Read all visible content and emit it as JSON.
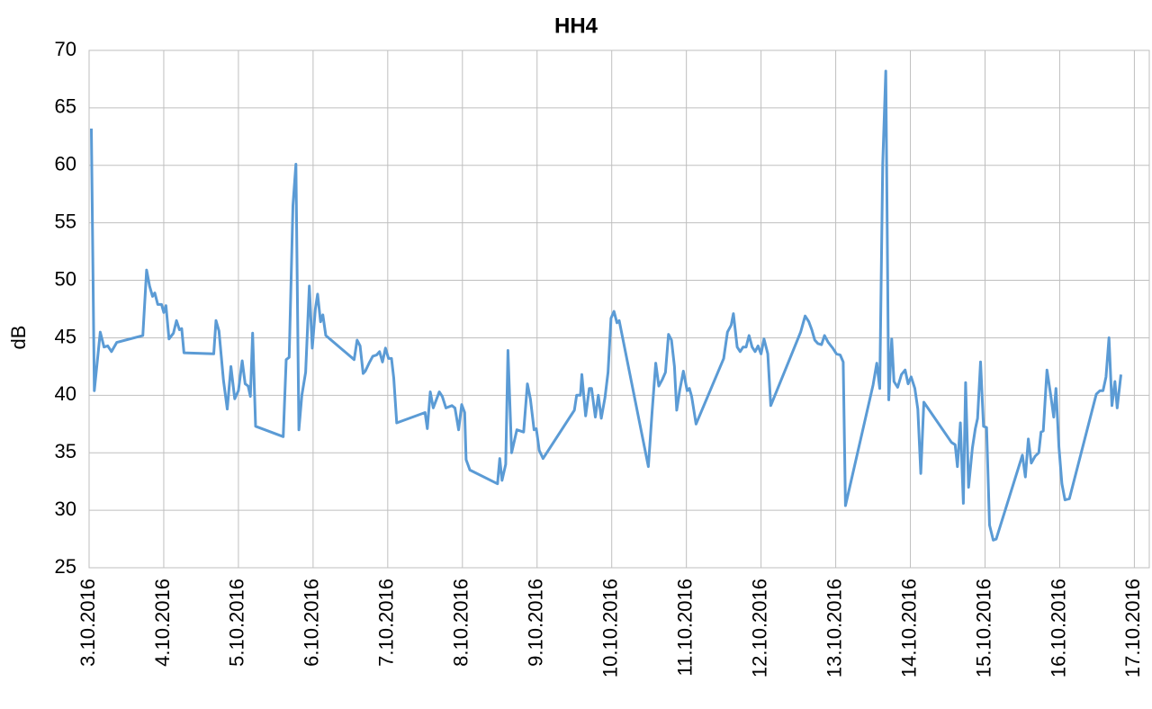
{
  "chart_data": {
    "type": "line",
    "title": "HH4",
    "y_label": "dB",
    "x": [
      0.03,
      0.07,
      0.15,
      0.2,
      0.25,
      0.3,
      0.37,
      0.72,
      0.77,
      0.81,
      0.85,
      0.88,
      0.92,
      0.97,
      1.0,
      1.03,
      1.07,
      1.13,
      1.17,
      1.21,
      1.24,
      1.27,
      1.67,
      1.7,
      1.74,
      1.8,
      1.85,
      1.9,
      1.95,
      2.0,
      2.05,
      2.09,
      2.13,
      2.16,
      2.19,
      2.23,
      2.6,
      2.64,
      2.68,
      2.73,
      2.77,
      2.81,
      2.85,
      2.9,
      2.95,
      2.99,
      3.03,
      3.06,
      3.1,
      3.13,
      3.17,
      3.55,
      3.59,
      3.63,
      3.67,
      3.7,
      3.75,
      3.8,
      3.85,
      3.89,
      3.93,
      3.97,
      4.01,
      4.05,
      4.08,
      4.12,
      4.5,
      4.53,
      4.57,
      4.61,
      4.69,
      4.73,
      4.78,
      4.86,
      4.9,
      4.95,
      4.99,
      5.03,
      5.05,
      5.1,
      5.47,
      5.5,
      5.53,
      5.58,
      5.61,
      5.66,
      5.73,
      5.82,
      5.87,
      5.91,
      5.96,
      5.99,
      6.03,
      6.08,
      6.5,
      6.53,
      6.58,
      6.6,
      6.65,
      6.7,
      6.73,
      6.78,
      6.82,
      6.86,
      6.91,
      6.95,
      6.99,
      7.03,
      7.07,
      7.1,
      7.49,
      7.54,
      7.59,
      7.63,
      7.68,
      7.72,
      7.76,
      7.8,
      7.84,
      7.87,
      7.91,
      7.96,
      8.01,
      8.04,
      8.07,
      8.13,
      8.5,
      8.55,
      8.6,
      8.63,
      8.68,
      8.72,
      8.76,
      8.8,
      8.84,
      8.88,
      8.92,
      8.96,
      9.0,
      9.04,
      9.09,
      9.13,
      9.53,
      9.59,
      9.64,
      9.68,
      9.72,
      9.76,
      9.81,
      9.85,
      9.9,
      9.96,
      10.01,
      10.06,
      10.1,
      10.13,
      10.5,
      10.55,
      10.59,
      10.63,
      10.67,
      10.71,
      10.75,
      10.78,
      10.83,
      10.88,
      10.93,
      10.97,
      11.01,
      11.06,
      11.1,
      11.14,
      11.18,
      11.55,
      11.6,
      11.63,
      11.67,
      11.71,
      11.74,
      11.78,
      11.83,
      11.87,
      11.9,
      11.94,
      11.98,
      12.02,
      12.06,
      12.11,
      12.15,
      12.5,
      12.54,
      12.58,
      12.62,
      12.67,
      12.72,
      12.75,
      12.78,
      12.83,
      12.88,
      12.92,
      12.95,
      12.99,
      13.03,
      13.07,
      13.13,
      13.49,
      13.54,
      13.58,
      13.62,
      13.66,
      13.7,
      13.74,
      13.77,
      13.82
    ],
    "series": [
      {
        "color": "#5b9bd5",
        "values": [
          63.2,
          40.4,
          45.5,
          44.2,
          44.3,
          43.8,
          44.6,
          45.2,
          50.9,
          49.5,
          48.6,
          48.9,
          47.9,
          47.9,
          47.2,
          47.8,
          44.9,
          45.4,
          46.5,
          45.7,
          45.8,
          43.7,
          43.6,
          46.5,
          45.6,
          41.3,
          38.8,
          42.5,
          39.7,
          40.4,
          43.0,
          41.0,
          40.8,
          39.9,
          45.4,
          37.3,
          36.4,
          43.1,
          43.3,
          56.5,
          60.1,
          37.0,
          40.0,
          42.0,
          49.5,
          44.1,
          47.5,
          48.8,
          46.4,
          47.0,
          45.2,
          43.1,
          44.8,
          44.3,
          41.9,
          42.1,
          42.8,
          43.4,
          43.5,
          43.8,
          42.9,
          44.1,
          43.2,
          43.2,
          41.5,
          37.6,
          38.5,
          37.1,
          40.3,
          38.9,
          40.3,
          39.9,
          38.9,
          39.1,
          38.9,
          37.0,
          39.2,
          38.5,
          34.4,
          33.5,
          32.3,
          34.5,
          32.6,
          34.0,
          43.9,
          35.0,
          37.0,
          36.8,
          41.0,
          39.7,
          37.0,
          37.1,
          35.2,
          34.5,
          38.7,
          40.0,
          40.0,
          41.8,
          38.2,
          40.6,
          40.6,
          38.1,
          40.0,
          38.0,
          39.8,
          42.0,
          46.7,
          47.3,
          46.3,
          46.5,
          33.8,
          38.5,
          42.8,
          40.8,
          41.4,
          42.0,
          45.3,
          44.8,
          42.5,
          38.7,
          40.4,
          42.1,
          40.4,
          40.6,
          39.9,
          37.5,
          43.2,
          45.5,
          46.1,
          47.1,
          44.2,
          43.8,
          44.2,
          44.2,
          45.2,
          44.2,
          43.8,
          44.3,
          43.6,
          44.9,
          43.6,
          39.1,
          45.5,
          46.9,
          46.4,
          45.7,
          44.8,
          44.5,
          44.4,
          45.2,
          44.6,
          44.1,
          43.6,
          43.5,
          42.9,
          30.4,
          40.9,
          42.8,
          40.6,
          60.1,
          68.2,
          39.6,
          44.9,
          41.2,
          40.7,
          41.8,
          42.2,
          41.0,
          41.6,
          40.6,
          38.8,
          33.2,
          39.4,
          35.9,
          35.7,
          33.8,
          37.6,
          30.6,
          41.1,
          32.0,
          35.4,
          37.1,
          38.0,
          42.9,
          37.3,
          37.2,
          28.7,
          27.4,
          27.5,
          34.8,
          32.9,
          36.2,
          34.1,
          34.7,
          35.0,
          36.8,
          36.9,
          42.2,
          40.0,
          38.1,
          40.6,
          35.5,
          32.3,
          30.9,
          31.0,
          40.1,
          40.4,
          40.4,
          41.6,
          45.0,
          39.1,
          41.2,
          38.9,
          41.8
        ]
      }
    ],
    "xlim": [
      0,
      14.2
    ],
    "xticks": [
      {
        "value": 0,
        "label": "3.10.2016"
      },
      {
        "value": 1,
        "label": "4.10.2016"
      },
      {
        "value": 2,
        "label": "5.10.2016"
      },
      {
        "value": 3,
        "label": "6.10.2016"
      },
      {
        "value": 4,
        "label": "7.10.2016"
      },
      {
        "value": 5,
        "label": "8.10.2016"
      },
      {
        "value": 6,
        "label": "9.10.2016"
      },
      {
        "value": 7,
        "label": "10.10.2016"
      },
      {
        "value": 8,
        "label": "11.10.2016"
      },
      {
        "value": 9,
        "label": "12.10.2016"
      },
      {
        "value": 10,
        "label": "13.10.2016"
      },
      {
        "value": 11,
        "label": "14.10.2016"
      },
      {
        "value": 12,
        "label": "15.10.2016"
      },
      {
        "value": 13,
        "label": "16.10.2016"
      },
      {
        "value": 14,
        "label": "17.10.2016"
      }
    ],
    "ylim": [
      25,
      70
    ],
    "yticks": [
      25,
      30,
      35,
      40,
      45,
      50,
      55,
      60,
      65,
      70
    ],
    "grid": true
  }
}
